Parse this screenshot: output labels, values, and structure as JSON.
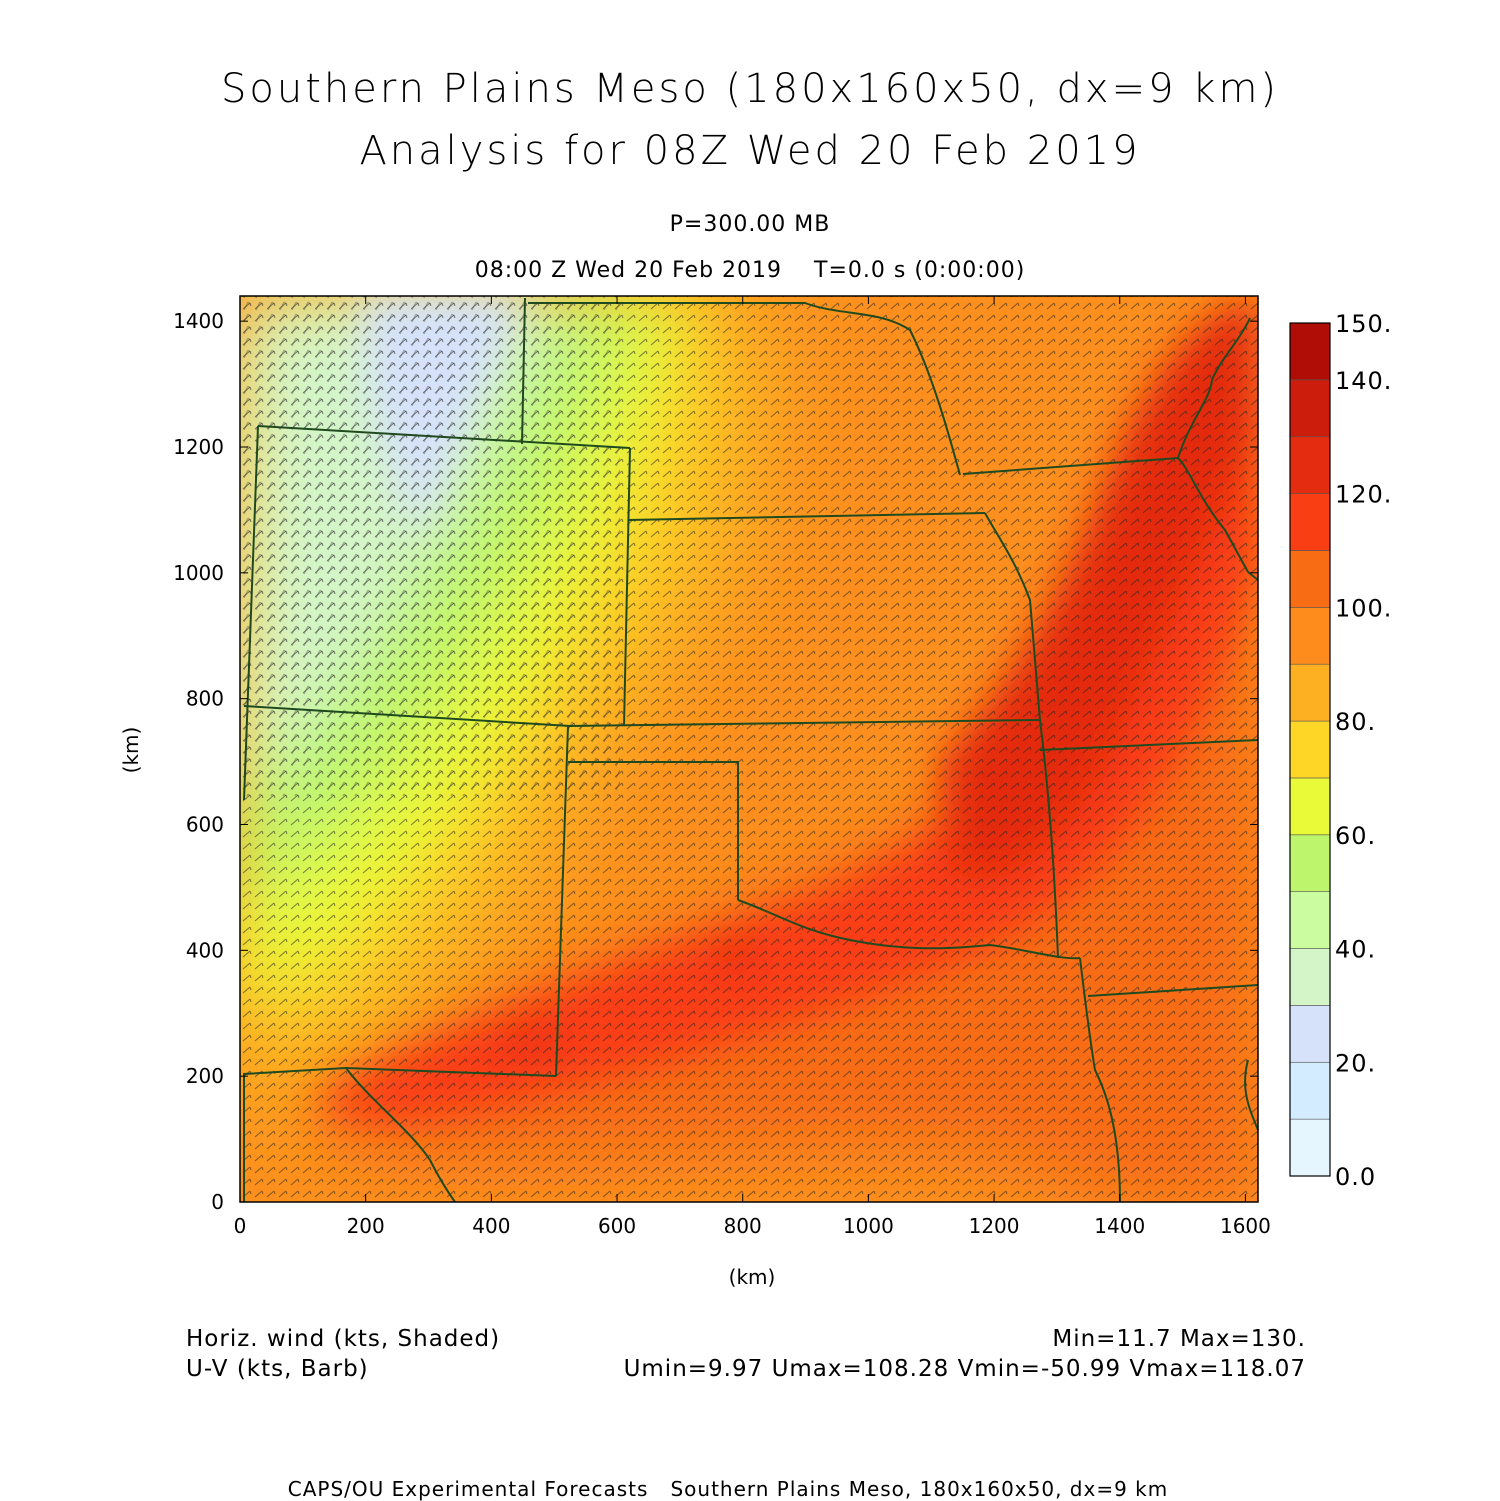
{
  "header": {
    "title_line1": "Southern Plains Meso (180x160x50, dx=9 km)",
    "title_line2": "Analysis for 08Z Wed 20 Feb 2019",
    "level": "P=300.00 MB",
    "time_line": "08:00 Z Wed 20 Feb 2019    T=0.0 s (0:00:00)"
  },
  "chart_data": {
    "type": "heatmap",
    "xlabel": "(km)",
    "ylabel": "(km)",
    "xlim": [
      0,
      1620
    ],
    "ylim": [
      0,
      1440
    ],
    "x_ticks": [
      "0",
      "200",
      "400",
      "600",
      "800",
      "1000",
      "1200",
      "1400",
      "1600"
    ],
    "y_ticks": [
      "0",
      "200",
      "400",
      "600",
      "800",
      "1000",
      "1200",
      "1400"
    ],
    "field": "Horizontal wind speed (kts), shaded, with U-V wind barbs",
    "colorbar": {
      "levels": [
        0,
        10,
        20,
        30,
        40,
        50,
        60,
        70,
        80,
        90,
        100,
        110,
        120,
        130,
        140,
        150
      ],
      "tick_labels": [
        "0.0",
        "20.",
        "40.",
        "60.",
        "80.",
        "100.",
        "120.",
        "140.",
        "150."
      ],
      "colors": [
        "#e6f6ff",
        "#d4ecff",
        "#d6e2fa",
        "#d4f5c8",
        "#cbfda0",
        "#bdf56c",
        "#e9fa38",
        "#fed726",
        "#fdb022",
        "#fd8c1d",
        "#f86c14",
        "#fa3e13",
        "#e42c10",
        "#cc1c0c",
        "#b00d06"
      ]
    },
    "max_core": {
      "path_km": [
        [
          130,
          150
        ],
        [
          450,
          290
        ],
        [
          780,
          400
        ],
        [
          1150,
          590
        ],
        [
          1560,
          1430
        ]
      ],
      "speed_kts": 130
    }
  },
  "legend": {
    "left_line1": "Horiz. wind (kts, Shaded)",
    "left_line2": "U-V (kts, Barb)",
    "right_line1": "Min=11.7  Max=130.",
    "right_line2": "Umin=9.97  Umax=108.28  Vmin=-50.99  Vmax=118.07"
  },
  "footer": "CAPS/OU Experimental Forecasts   Southern Plains Meso, 180x160x50, dx=9 km"
}
